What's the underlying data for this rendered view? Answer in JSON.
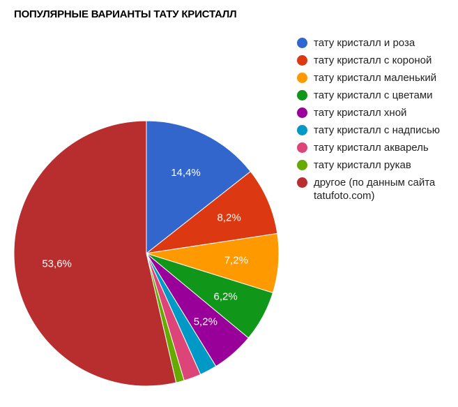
{
  "chart_data": {
    "type": "pie",
    "title": "ПОПУЛЯРНЫЕ ВАРИАНТЫ ТАТУ КРИСТАЛЛ",
    "legend_position": "right",
    "slices": [
      {
        "label": "тату кристалл и роза",
        "value": 14.4,
        "value_label": "14,4%",
        "color": "#3366cc"
      },
      {
        "label": "тату кристалл с короной",
        "value": 8.2,
        "value_label": "8,2%",
        "color": "#dc3912"
      },
      {
        "label": "тату кристалл маленький",
        "value": 7.2,
        "value_label": "7,2%",
        "color": "#ff9900"
      },
      {
        "label": "тату кристалл с цветами",
        "value": 6.2,
        "value_label": "6,2%",
        "color": "#109618"
      },
      {
        "label": "тату кристалл хной",
        "value": 5.2,
        "value_label": "5,2%",
        "color": "#990099"
      },
      {
        "label": "тату кристалл с надписью",
        "value": 2.1,
        "value_label": "",
        "color": "#0099c6"
      },
      {
        "label": "тату кристалл акварель",
        "value": 2.1,
        "value_label": "",
        "color": "#dd4477"
      },
      {
        "label": "тату кристалл рукав",
        "value": 1.0,
        "value_label": "",
        "color": "#66aa00"
      },
      {
        "label": "другое (по данным сайта tatufoto.com)",
        "value": 53.6,
        "value_label": "53,6%",
        "color": "#b82e2e"
      }
    ]
  }
}
